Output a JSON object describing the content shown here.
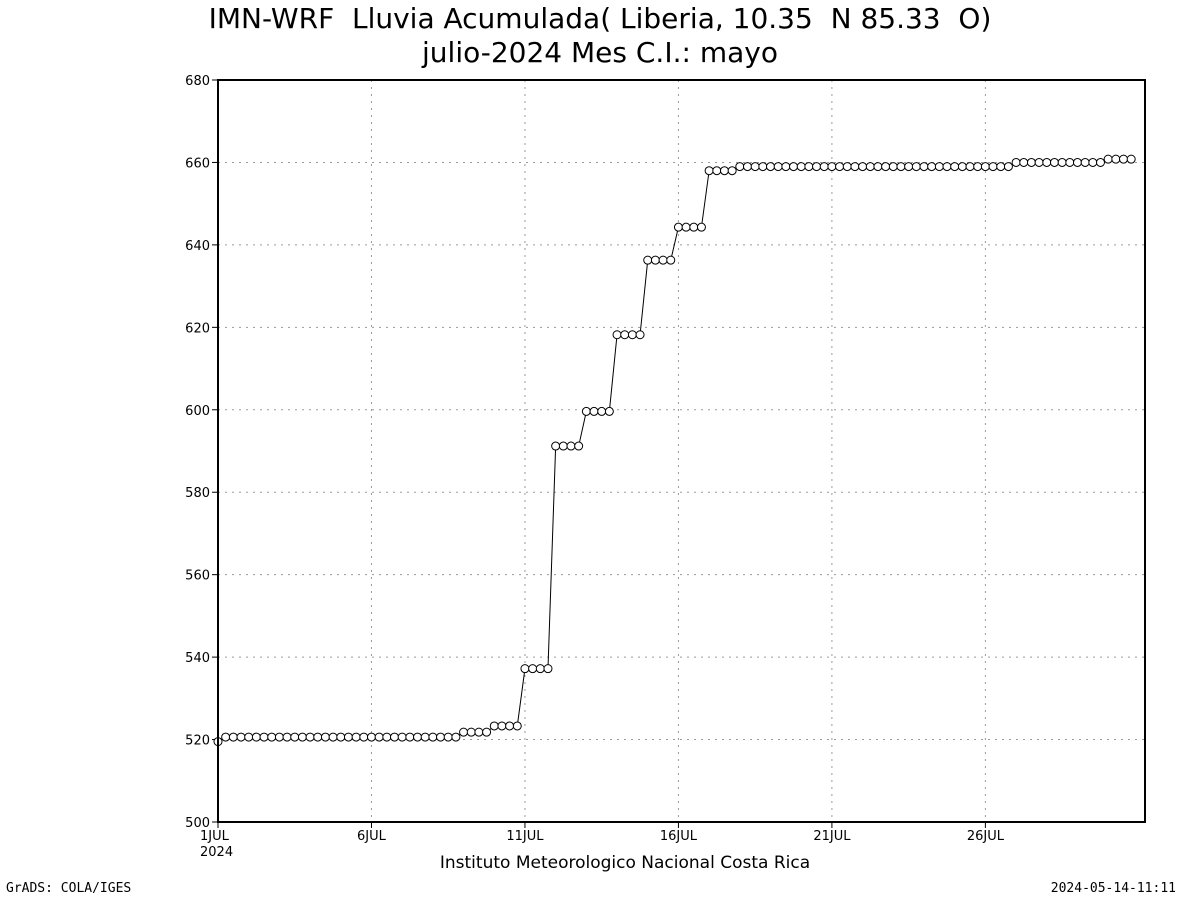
{
  "chart_data": {
    "type": "line",
    "title": "IMN-WRF  Lluvia Acumulada( Liberia, 10.35  N 85.33  O)",
    "subtitle": "julio-2024 Mes C.I.: mayo",
    "xlabel": "",
    "ylabel": "",
    "ylim": [
      500,
      680
    ],
    "y_ticks": [
      500,
      520,
      540,
      560,
      580,
      600,
      620,
      640,
      660,
      680
    ],
    "x_range_days": [
      1,
      31.2
    ],
    "x_ticks": [
      {
        "day": 1,
        "label": "1JUL",
        "sublabel": "2024"
      },
      {
        "day": 6,
        "label": "6JUL"
      },
      {
        "day": 11,
        "label": "11JUL"
      },
      {
        "day": 16,
        "label": "16JUL"
      },
      {
        "day": 21,
        "label": "21JUL"
      },
      {
        "day": 26,
        "label": "26JUL"
      }
    ],
    "grid": true,
    "marker": "open-circle",
    "series": [
      {
        "x_days_start": 1,
        "step_days": 0.25,
        "values": [
          519.5,
          520.6,
          520.6,
          520.6,
          520.6,
          520.6,
          520.6,
          520.6,
          520.6,
          520.6,
          520.6,
          520.6,
          520.6,
          520.6,
          520.6,
          520.6,
          520.6,
          520.6,
          520.6,
          520.6,
          520.6,
          520.6,
          520.6,
          520.6,
          520.6,
          520.6,
          520.6,
          520.6,
          520.6,
          520.6,
          520.6,
          520.6,
          521.8,
          521.8,
          521.8,
          521.8,
          523.3,
          523.3,
          523.3,
          523.3,
          537.2,
          537.2,
          537.2,
          537.2,
          591.2,
          591.2,
          591.2,
          591.2,
          599.6,
          599.6,
          599.6,
          599.6,
          618.2,
          618.2,
          618.2,
          618.2,
          636.3,
          636.3,
          636.3,
          636.3,
          644.3,
          644.3,
          644.3,
          644.3,
          658.0,
          658.0,
          658.0,
          658.0,
          659.0,
          659.0,
          659.0,
          659.0,
          659.0,
          659.0,
          659.0,
          659.0,
          659.0,
          659.0,
          659.0,
          659.0,
          659.0,
          659.0,
          659.0,
          659.0,
          659.0,
          659.0,
          659.0,
          659.0,
          659.0,
          659.0,
          659.0,
          659.0,
          659.0,
          659.0,
          659.0,
          659.0,
          659.0,
          659.0,
          659.0,
          659.0,
          659.0,
          659.0,
          659.0,
          659.0,
          660.0,
          660.0,
          660.0,
          660.0,
          660.0,
          660.0,
          660.0,
          660.0,
          660.0,
          660.0,
          660.0,
          660.0,
          660.8,
          660.8,
          660.8,
          660.8
        ]
      }
    ]
  },
  "footer": {
    "institution": "Instituto Meteorologico Nacional Costa Rica",
    "software": "GrADS: COLA/IGES",
    "timestamp": "2024-05-14-11:11"
  }
}
